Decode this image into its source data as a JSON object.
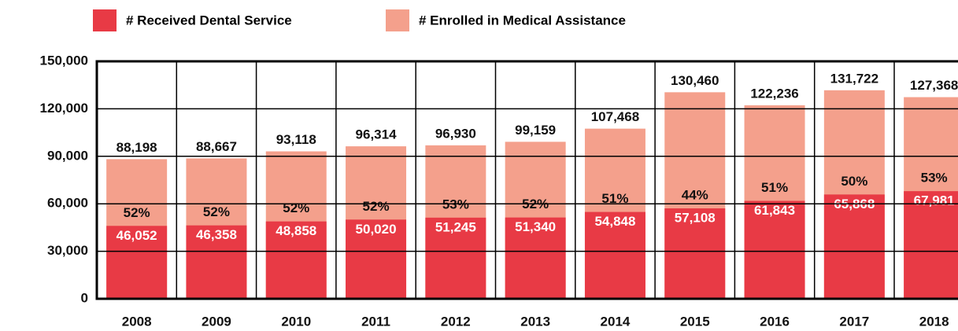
{
  "chart_data": {
    "type": "bar",
    "bar_mode": "overlay",
    "categories": [
      "2008",
      "2009",
      "2010",
      "2011",
      "2012",
      "2013",
      "2014",
      "2015",
      "2016",
      "2017",
      "2018"
    ],
    "series": [
      {
        "name": "# Enrolled in Medical Assistance",
        "color": "#f4a08c",
        "values": [
          88198,
          88667,
          93118,
          96314,
          96930,
          99159,
          107468,
          130460,
          122236,
          131722,
          127368
        ],
        "value_labels": [
          "88,198",
          "88,667",
          "93,118",
          "96,314",
          "96,930",
          "99,159",
          "107,468",
          "130,460",
          "122,236",
          "131,722",
          "127,368"
        ]
      },
      {
        "name": "# Received Dental Service",
        "color": "#e83a45",
        "values": [
          46052,
          46358,
          48858,
          50020,
          51245,
          51340,
          54848,
          57108,
          61843,
          65868,
          67981
        ],
        "value_labels": [
          "46,052",
          "46,358",
          "48,858",
          "50,020",
          "51,245",
          "51,340",
          "54,848",
          "57,108",
          "61,843",
          "65,868",
          "67,981"
        ]
      }
    ],
    "annotations": [
      "52%",
      "52%",
      "52%",
      "52%",
      "53%",
      "52%",
      "51%",
      "44%",
      "51%",
      "50%",
      "53%"
    ],
    "ylim": [
      0,
      150000
    ],
    "yticks": [
      0,
      {
        "value": 30000,
        "label": "30,000"
      },
      {
        "value": 60000,
        "label": "60,000"
      },
      {
        "value": 90000,
        "label": "90,000"
      },
      {
        "value": 120000,
        "label": "120,000"
      },
      {
        "value": 150000,
        "label": "150,000"
      }
    ],
    "grid": true,
    "legend": "top"
  }
}
